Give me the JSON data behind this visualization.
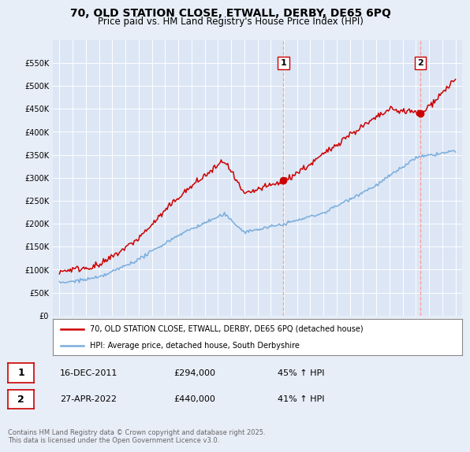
{
  "title": "70, OLD STATION CLOSE, ETWALL, DERBY, DE65 6PQ",
  "subtitle": "Price paid vs. HM Land Registry's House Price Index (HPI)",
  "title_fontsize": 10,
  "subtitle_fontsize": 8.5,
  "background_color": "#e8eef8",
  "plot_bg_color": "#dce6f5",
  "ylim": [
    0,
    600000
  ],
  "yticks": [
    0,
    50000,
    100000,
    150000,
    200000,
    250000,
    300000,
    350000,
    400000,
    450000,
    500000,
    550000
  ],
  "ytick_labels": [
    "£0",
    "£50K",
    "£100K",
    "£150K",
    "£200K",
    "£250K",
    "£300K",
    "£350K",
    "£400K",
    "£450K",
    "£500K",
    "£550K"
  ],
  "red_color": "#cc0000",
  "blue_color": "#7aaddb",
  "vline_color": "#ff9999",
  "sale1_year": 2011.96,
  "sale1_price": 294000,
  "sale1_label": "1",
  "sale2_year": 2022.32,
  "sale2_price": 440000,
  "sale2_label": "2",
  "legend_line1": "70, OLD STATION CLOSE, ETWALL, DERBY, DE65 6PQ (detached house)",
  "legend_line2": "HPI: Average price, detached house, South Derbyshire",
  "ann1_date": "16-DEC-2011",
  "ann1_price": "£294,000",
  "ann1_hpi": "45% ↑ HPI",
  "ann2_date": "27-APR-2022",
  "ann2_price": "£440,000",
  "ann2_hpi": "41% ↑ HPI",
  "footer": "Contains HM Land Registry data © Crown copyright and database right 2025.\nThis data is licensed under the Open Government Licence v3.0."
}
